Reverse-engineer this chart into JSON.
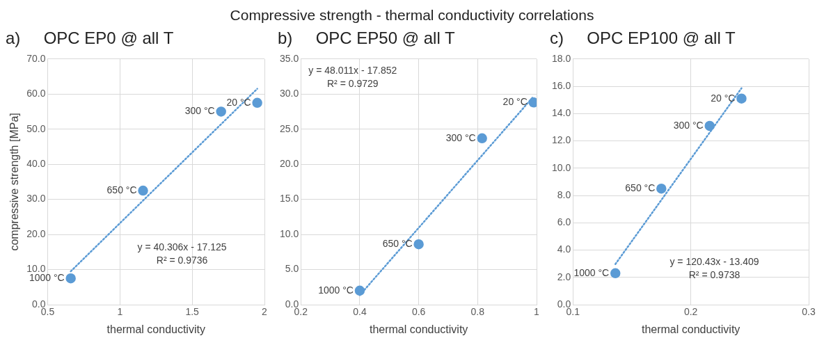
{
  "chart_data": [
    {
      "type": "other",
      "title": "Compressive strength - thermal conductivity correlations"
    },
    {
      "type": "scatter",
      "title": "a)     OPC EP0 @ all T",
      "xlabel": "thermal conductivity",
      "ylabel": "compressive strength [MPa]",
      "grid": true,
      "marker": "circle",
      "xlim": [
        0.5,
        2
      ],
      "xticks": [
        0.5,
        1,
        1.5,
        2
      ],
      "ylim": [
        0,
        70
      ],
      "yticks": [
        {
          "value": 0,
          "label": "0.0"
        },
        {
          "value": 10,
          "label": "10.0"
        },
        {
          "value": 20,
          "label": "20.0"
        },
        {
          "value": 30,
          "label": "30.0"
        },
        {
          "value": 40,
          "label": "40.0"
        },
        {
          "value": 50,
          "label": "50.0"
        },
        {
          "value": 60,
          "label": "60.0"
        },
        {
          "value": 70,
          "label": "70.0"
        }
      ],
      "series": [
        {
          "type": "scatter",
          "color": "#5b9bd5",
          "x": [
            0.66,
            1.16,
            1.7,
            1.95
          ],
          "values": [
            7.5,
            32.5,
            55,
            57.5
          ]
        },
        {
          "type": "line",
          "color": "#5b9bd5",
          "marker": "none",
          "line_style": "dotted",
          "x": [
            0.66,
            1.95
          ],
          "values": [
            9.5,
            61.5
          ]
        }
      ],
      "annotations": [
        {
          "text": "1000 °C",
          "x": 0.66,
          "y": 7.5
        },
        {
          "text": "650 °C",
          "x": 1.16,
          "y": 32.5
        },
        {
          "text": "300 °C",
          "x": 1.7,
          "y": 55
        },
        {
          "text": "20 °C",
          "x": 1.95,
          "y": 57.5
        },
        "y = 40.306x - 17.125",
        "R² = 0.9736"
      ]
    },
    {
      "type": "scatter",
      "title": "b)     OPC EP50 @ all T",
      "xlabel": "thermal conductivity",
      "grid": true,
      "marker": "circle",
      "xlim": [
        0.2,
        1
      ],
      "xticks": [
        0.2,
        0.4,
        0.6,
        0.8,
        1
      ],
      "ylim": [
        0,
        35
      ],
      "yticks": [
        {
          "value": 0,
          "label": "0.0"
        },
        {
          "value": 5,
          "label": "5.0"
        },
        {
          "value": 10,
          "label": "10.0"
        },
        {
          "value": 15,
          "label": "15.0"
        },
        {
          "value": 20,
          "label": "20.0"
        },
        {
          "value": 25,
          "label": "25.0"
        },
        {
          "value": 30,
          "label": "30.0"
        },
        {
          "value": 35,
          "label": "35.0"
        }
      ],
      "series": [
        {
          "type": "scatter",
          "color": "#5b9bd5",
          "x": [
            0.4,
            0.6,
            0.815,
            0.99
          ],
          "values": [
            2.0,
            8.6,
            23.7,
            28.8
          ]
        },
        {
          "type": "line",
          "color": "#5b9bd5",
          "marker": "none",
          "line_style": "dotted",
          "x": [
            0.4,
            0.99
          ],
          "values": [
            1.35,
            29.68
          ]
        }
      ],
      "annotations": [
        {
          "text": "1000 °C",
          "x": 0.4,
          "y": 2.0
        },
        {
          "text": "650 °C",
          "x": 0.6,
          "y": 8.6
        },
        {
          "text": "300 °C",
          "x": 0.815,
          "y": 23.7
        },
        {
          "text": "20 °C",
          "x": 0.99,
          "y": 28.8
        },
        "y = 48.011x - 17.852",
        "R² = 0.9729"
      ]
    },
    {
      "type": "scatter",
      "title": "c)     OPC EP100 @ all T",
      "xlabel": "thermal conductivity",
      "grid": true,
      "marker": "circle",
      "xlim": [
        0.1,
        0.3
      ],
      "xticks": [
        0.1,
        0.2,
        0.3
      ],
      "ylim": [
        0,
        18
      ],
      "yticks": [
        {
          "value": 0,
          "label": "0.0"
        },
        {
          "value": 2,
          "label": "2.0"
        },
        {
          "value": 4,
          "label": "4.0"
        },
        {
          "value": 6,
          "label": "6.0"
        },
        {
          "value": 8,
          "label": "8.0"
        },
        {
          "value": 10,
          "label": "10.0"
        },
        {
          "value": 12,
          "label": "12.0"
        },
        {
          "value": 14,
          "label": "14.0"
        },
        {
          "value": 16,
          "label": "16.0"
        },
        {
          "value": 18,
          "label": "18.0"
        }
      ],
      "series": [
        {
          "type": "scatter",
          "color": "#5b9bd5",
          "x": [
            0.136,
            0.175,
            0.216,
            0.243
          ],
          "values": [
            2.3,
            8.5,
            13.1,
            15.1
          ]
        },
        {
          "type": "line",
          "color": "#5b9bd5",
          "marker": "none",
          "line_style": "dotted",
          "x": [
            0.136,
            0.243
          ],
          "values": [
            2.97,
            15.86
          ]
        }
      ],
      "annotations": [
        {
          "text": "1000 °C",
          "x": 0.136,
          "y": 2.3
        },
        {
          "text": "650 °C",
          "x": 0.175,
          "y": 8.5
        },
        {
          "text": "300 °C",
          "x": 0.216,
          "y": 13.1
        },
        {
          "text": "20 °C",
          "x": 0.243,
          "y": 15.1
        },
        "y = 120.43x - 13.409",
        "R² = 0.9738"
      ]
    }
  ]
}
